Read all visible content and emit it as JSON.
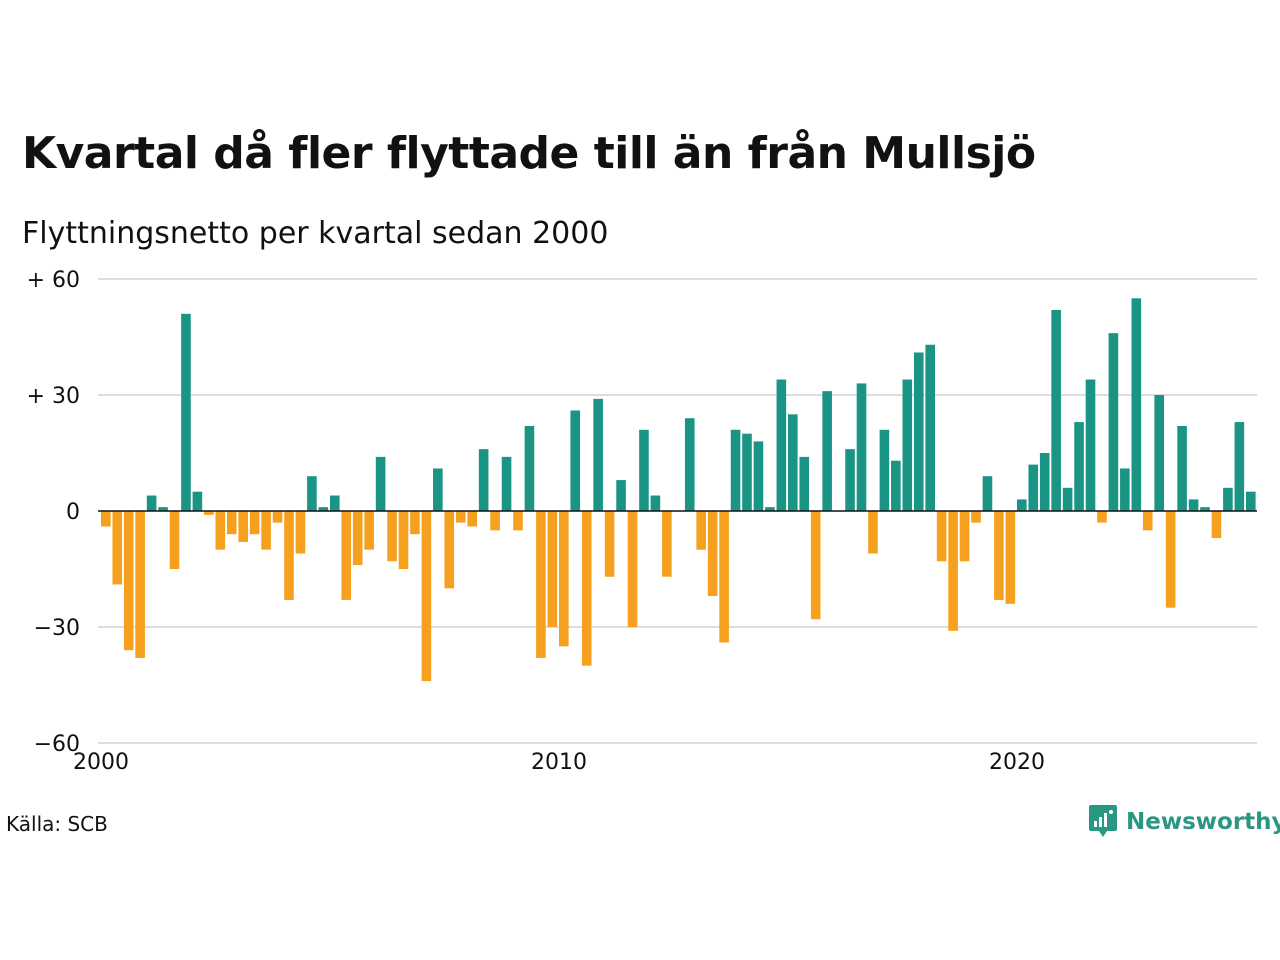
{
  "title": "Kvartal då fler flyttade till än från Mullsjö",
  "subtitle": "Flyttningsnetto per kvartal sedan 2000",
  "source": "Källa: SCB",
  "brand": {
    "name": "Newsworthy",
    "icon": "newsworthy-logo-icon"
  },
  "colors": {
    "positive": "#1a9585",
    "negative": "#f5a11f",
    "grid": "#dddddd",
    "zero": "#111111",
    "brand": "#2a9784"
  },
  "chart_data": {
    "type": "bar",
    "title": "Kvartal då fler flyttade till än från Mullsjö",
    "subtitle": "Flyttningsnetto per kvartal sedan 2000",
    "xlabel": "",
    "ylabel": "",
    "ylim": [
      -60,
      60
    ],
    "y_ticks": [
      60,
      30,
      0,
      -30,
      -60
    ],
    "y_tick_labels": [
      "+ 60",
      "+ 30",
      "0",
      "−30",
      "−60"
    ],
    "x_ticks": [
      "2000",
      "2010",
      "2020"
    ],
    "x_start": "2000 Q1",
    "grid": true,
    "legend": "none",
    "values": [
      -4,
      -19,
      -36,
      -38,
      4,
      1,
      -15,
      51,
      5,
      -1,
      -10,
      -6,
      -8,
      -6,
      -10,
      -3,
      -23,
      -11,
      9,
      1,
      4,
      -23,
      -14,
      -10,
      14,
      -13,
      -15,
      -6,
      -44,
      11,
      -20,
      -3,
      -4,
      16,
      -5,
      14,
      -5,
      22,
      -38,
      -30,
      -35,
      26,
      -40,
      29,
      -17,
      8,
      -30,
      21,
      4,
      -17,
      0,
      24,
      -10,
      -22,
      -34,
      21,
      20,
      18,
      1,
      34,
      25,
      14,
      -28,
      31,
      0,
      16,
      33,
      -11,
      21,
      13,
      34,
      41,
      43,
      -13,
      -31,
      -13,
      -3,
      9,
      -23,
      -24,
      3,
      12,
      15,
      52,
      6,
      23,
      34,
      -3,
      46,
      11,
      55,
      -5,
      30,
      -25,
      22,
      3,
      1,
      -7,
      6,
      23,
      5
    ]
  }
}
